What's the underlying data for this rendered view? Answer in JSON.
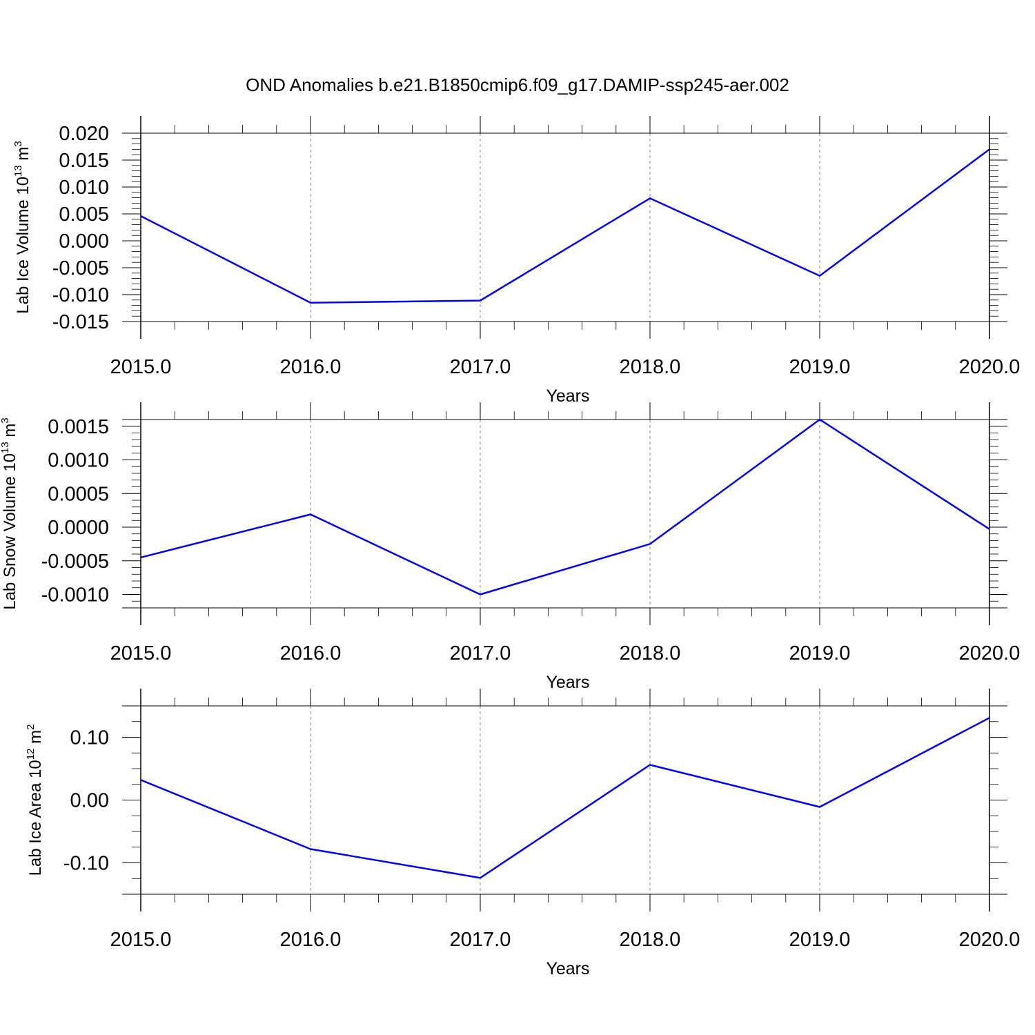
{
  "title": "OND Anomalies b.e21.B1850cmip6.f09_g17.DAMIP-ssp245-aer.002",
  "line_color": "#0000ee",
  "chart_data": [
    {
      "type": "line",
      "ylabel": "Lab Ice Volume 10",
      "ylabel_exp": "13",
      "ylabel_unit": " m",
      "ylabel_unit_exp": "3",
      "xlabel": "Years",
      "x": [
        2015,
        2016,
        2017,
        2018,
        2019,
        2020
      ],
      "xticks": [
        2015,
        2016,
        2017,
        2018,
        2019,
        2020
      ],
      "xtick_labels": [
        "2015.0",
        "2016.0",
        "2017.0",
        "2018.0",
        "2019.0",
        "2020.0"
      ],
      "xlim": [
        2015,
        2020
      ],
      "series": [
        {
          "values": [
            0.0046,
            -0.0115,
            -0.0111,
            0.0079,
            -0.0065,
            0.017
          ]
        }
      ],
      "ylim": [
        -0.015,
        0.02
      ],
      "yticks": [
        0.02,
        0.015,
        0.01,
        0.005,
        0.0,
        -0.005,
        -0.01,
        -0.015
      ],
      "ytick_labels": [
        "0.020",
        "0.015",
        "0.010",
        "0.005",
        "0.000",
        "-0.005",
        "-0.010",
        "-0.015"
      ],
      "grid": "vertical dashed"
    },
    {
      "type": "line",
      "ylabel": "Lab Snow Volume 10",
      "ylabel_exp": "13",
      "ylabel_unit": " m",
      "ylabel_unit_exp": "3",
      "xlabel": "Years",
      "x": [
        2015,
        2016,
        2017,
        2018,
        2019,
        2020
      ],
      "xticks": [
        2015,
        2016,
        2017,
        2018,
        2019,
        2020
      ],
      "xtick_labels": [
        "2015.0",
        "2016.0",
        "2017.0",
        "2018.0",
        "2019.0",
        "2020.0"
      ],
      "xlim": [
        2015,
        2020
      ],
      "series": [
        {
          "values": [
            -0.00045,
            0.00019,
            -0.001,
            -0.00025,
            0.0016,
            -3e-05
          ]
        }
      ],
      "ylim": [
        -0.0012,
        0.0016
      ],
      "yticks": [
        0.0015,
        0.001,
        0.0005,
        0.0,
        -0.0005,
        -0.001
      ],
      "ytick_labels": [
        "0.0015",
        "0.0010",
        "0.0005",
        "0.0000",
        "-0.0005",
        "-0.0010"
      ],
      "grid": "vertical dashed"
    },
    {
      "type": "line",
      "ylabel": "Lab Ice Area 10",
      "ylabel_exp": "12",
      "ylabel_unit": " m",
      "ylabel_unit_exp": "2",
      "xlabel": "Years",
      "x": [
        2015,
        2016,
        2017,
        2018,
        2019,
        2020
      ],
      "xticks": [
        2015,
        2016,
        2017,
        2018,
        2019,
        2020
      ],
      "xtick_labels": [
        "2015.0",
        "2016.0",
        "2017.0",
        "2018.0",
        "2019.0",
        "2020.0"
      ],
      "xlim": [
        2015,
        2020
      ],
      "series": [
        {
          "values": [
            0.032,
            -0.078,
            -0.124,
            0.056,
            -0.011,
            0.131
          ]
        }
      ],
      "ylim": [
        -0.15,
        0.15
      ],
      "yticks": [
        0.1,
        0.0,
        -0.1
      ],
      "ytick_labels": [
        "0.10",
        "0.00",
        "-0.10"
      ],
      "yminor_step": 0.025,
      "grid": "vertical dashed"
    }
  ]
}
